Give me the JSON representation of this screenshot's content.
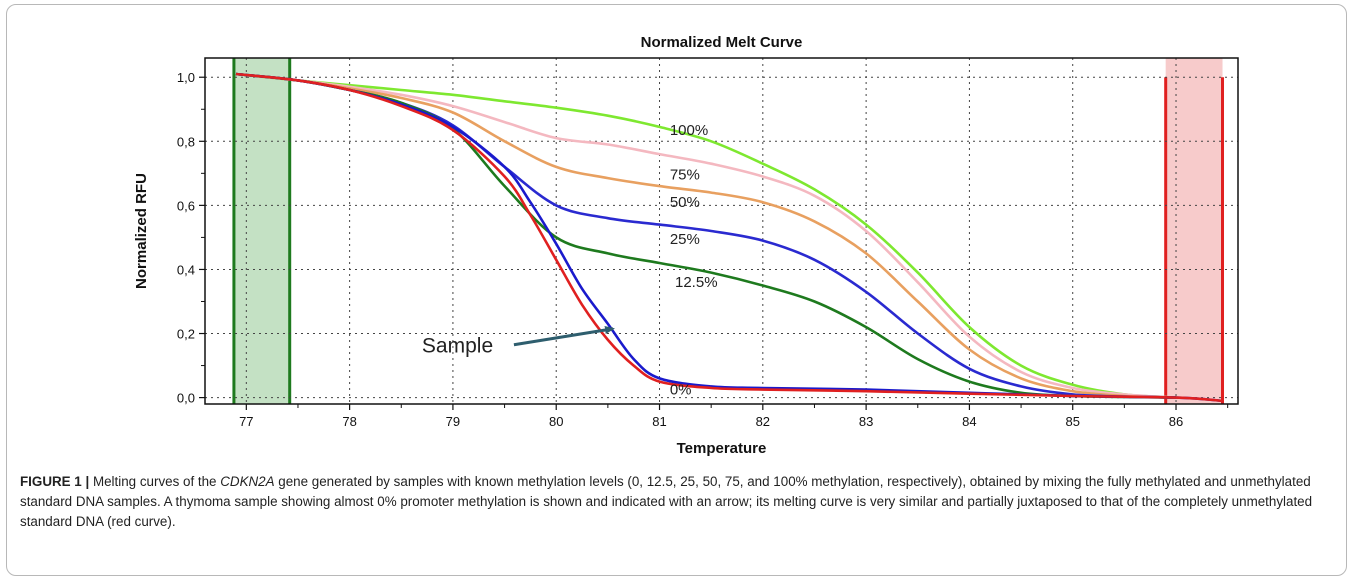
{
  "chart_data": {
    "type": "line",
    "title": "Normalized Melt Curve",
    "xlabel": "Temperature",
    "ylabel": "Normalized RFU",
    "xlim": [
      76.6,
      86.6
    ],
    "ylim": [
      -0.02,
      1.06
    ],
    "xticks": [
      77,
      78,
      79,
      80,
      81,
      82,
      83,
      84,
      85,
      86
    ],
    "xtick_labels": [
      "77",
      "78",
      "79",
      "80",
      "81",
      "82",
      "83",
      "84",
      "85",
      "86"
    ],
    "yticks": [
      0,
      0.2,
      0.4,
      0.6,
      0.8,
      1.0
    ],
    "ytick_labels": [
      "0,0",
      "0,2",
      "0,4",
      "0,6",
      "0,8",
      "1,0"
    ],
    "grid": true,
    "left_region": {
      "x_start": 76.88,
      "x_end": 77.42,
      "color": "#3a9a3a"
    },
    "right_region": {
      "x_start": 85.9,
      "x_end": 86.45,
      "color": "#e03030"
    },
    "series": [
      {
        "name": "100%",
        "color": "#7ee830",
        "x": [
          76.9,
          77.5,
          78.0,
          78.5,
          79.0,
          79.5,
          80.0,
          80.5,
          81.0,
          81.5,
          82.0,
          82.5,
          83.0,
          83.5,
          84.0,
          84.5,
          85.0,
          85.5,
          86.0
        ],
        "y": [
          1.01,
          0.99,
          0.975,
          0.96,
          0.945,
          0.925,
          0.905,
          0.88,
          0.845,
          0.8,
          0.73,
          0.65,
          0.54,
          0.39,
          0.22,
          0.1,
          0.04,
          0.01,
          0.0
        ]
      },
      {
        "name": "75%",
        "color": "#f4b8c0",
        "x": [
          76.9,
          77.5,
          78.0,
          78.5,
          79.0,
          79.5,
          80.0,
          80.5,
          81.0,
          81.5,
          82.0,
          82.5,
          83.0,
          83.5,
          84.0,
          84.5,
          85.0,
          85.5,
          86.0
        ],
        "y": [
          1.01,
          0.99,
          0.97,
          0.945,
          0.91,
          0.86,
          0.81,
          0.79,
          0.76,
          0.73,
          0.69,
          0.63,
          0.52,
          0.36,
          0.19,
          0.08,
          0.03,
          0.01,
          0.0
        ]
      },
      {
        "name": "50%",
        "color": "#e8a060",
        "x": [
          76.9,
          77.5,
          78.0,
          78.5,
          79.0,
          79.5,
          80.0,
          80.5,
          81.0,
          81.5,
          82.0,
          82.5,
          83.0,
          83.5,
          84.0,
          84.5,
          85.0,
          85.5,
          86.0
        ],
        "y": [
          1.01,
          0.99,
          0.965,
          0.935,
          0.89,
          0.8,
          0.72,
          0.685,
          0.66,
          0.64,
          0.61,
          0.55,
          0.45,
          0.3,
          0.15,
          0.06,
          0.02,
          0.005,
          0.0
        ]
      },
      {
        "name": "25%",
        "color": "#2a2ad0",
        "x": [
          76.9,
          77.5,
          78.0,
          78.5,
          79.0,
          79.5,
          80.0,
          80.5,
          81.0,
          81.5,
          82.0,
          82.5,
          83.0,
          83.5,
          84.0,
          84.5,
          85.0,
          85.5,
          86.0
        ],
        "y": [
          1.01,
          0.99,
          0.96,
          0.92,
          0.85,
          0.72,
          0.6,
          0.56,
          0.54,
          0.52,
          0.49,
          0.43,
          0.33,
          0.2,
          0.09,
          0.035,
          0.01,
          0.003,
          0.0
        ]
      },
      {
        "name": "12.5%",
        "color": "#1e7a1e",
        "x": [
          76.9,
          77.5,
          78.0,
          78.5,
          79.0,
          79.5,
          80.0,
          80.5,
          81.0,
          81.5,
          82.0,
          82.5,
          83.0,
          83.5,
          84.0,
          84.5,
          85.0,
          85.5,
          86.0
        ],
        "y": [
          1.01,
          0.99,
          0.96,
          0.92,
          0.84,
          0.66,
          0.5,
          0.45,
          0.42,
          0.39,
          0.35,
          0.3,
          0.22,
          0.12,
          0.05,
          0.015,
          0.005,
          0.002,
          0.0
        ]
      },
      {
        "name": "Sample",
        "color": "#1a1acc",
        "x": [
          76.9,
          77.5,
          78.0,
          78.5,
          79.0,
          79.5,
          79.75,
          80.0,
          80.25,
          80.5,
          80.75,
          81.0,
          81.5,
          82.0,
          83.0,
          84.0,
          85.0,
          86.0,
          86.45
        ],
        "y": [
          1.01,
          0.99,
          0.96,
          0.915,
          0.845,
          0.72,
          0.61,
          0.48,
          0.34,
          0.23,
          0.12,
          0.06,
          0.035,
          0.03,
          0.025,
          0.015,
          0.005,
          0.0,
          -0.01
        ]
      },
      {
        "name": "0%",
        "color": "#e02020",
        "x": [
          76.9,
          77.5,
          78.0,
          78.5,
          79.0,
          79.5,
          79.75,
          80.0,
          80.25,
          80.5,
          80.75,
          81.0,
          81.5,
          82.0,
          83.0,
          84.0,
          85.0,
          86.0,
          86.45
        ],
        "y": [
          1.01,
          0.99,
          0.96,
          0.91,
          0.835,
          0.69,
          0.57,
          0.43,
          0.29,
          0.18,
          0.1,
          0.05,
          0.03,
          0.025,
          0.02,
          0.012,
          0.005,
          0.0,
          -0.01
        ]
      }
    ],
    "annotations": [
      {
        "text": "100%",
        "x": 81.1,
        "y": 0.82
      },
      {
        "text": "75%",
        "x": 81.1,
        "y": 0.68
      },
      {
        "text": "50%",
        "x": 81.1,
        "y": 0.595
      },
      {
        "text": "25%",
        "x": 81.1,
        "y": 0.48
      },
      {
        "text": "12.5%",
        "x": 81.15,
        "y": 0.345
      },
      {
        "text": "0%",
        "x": 81.1,
        "y": 0.01
      },
      {
        "text": "Sample",
        "x": 78.7,
        "y": 0.14,
        "arrow_to": [
          80.55,
          0.215
        ]
      }
    ]
  },
  "caption": {
    "figure": "FIGURE 1 |",
    "text_before_gene": " Melting curves of the ",
    "gene": "CDKN2A",
    "text_after_gene": " gene generated by samples with known methylation levels (0, 12.5, 25, 50, 75, and 100% methylation, respectively), obtained by mixing the fully methylated and unmethylated standard DNA samples. A thymoma sample showing almost 0% promoter methylation is shown and indicated with an arrow; its melting curve is very similar and partially juxtaposed to that of the completely unmethylated standard DNA (red curve)."
  }
}
